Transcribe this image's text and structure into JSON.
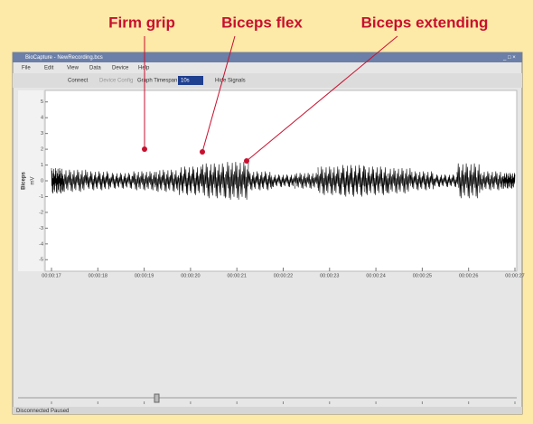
{
  "annotations": [
    "Firm grip",
    "Biceps flex",
    "Biceps extending"
  ],
  "window": {
    "title": "BioCapture - NewRecording.bcs",
    "menu": [
      "File",
      "Edit",
      "View",
      "Data",
      "Device",
      "Help"
    ],
    "toolbar": {
      "connect": "Connect",
      "device_config": "Device Config",
      "timespan_label": "Graph Timespan",
      "timespan_value": "10s",
      "hide_signals": "Hide Signals"
    },
    "status": "Disconnected  Paused"
  },
  "chart_data": {
    "type": "line",
    "y_label": "Biceps",
    "y_unit": "mV",
    "color": "#000000",
    "ylim": [
      -5.5,
      5.5
    ],
    "yticks": [
      5,
      4,
      3,
      2,
      1,
      0,
      -1,
      -2,
      -3,
      -4,
      -5
    ],
    "xlim": [
      17,
      27
    ],
    "xticks": [
      {
        "value": 17,
        "label": "00:00:17"
      },
      {
        "value": 18,
        "label": "00:00:18"
      },
      {
        "value": 19,
        "label": "00:00:19"
      },
      {
        "value": 20,
        "label": "00:00:20"
      },
      {
        "value": 21,
        "label": "00:00:21"
      },
      {
        "value": 22,
        "label": "00:00:22"
      },
      {
        "value": 23,
        "label": "00:00:23"
      },
      {
        "value": 24,
        "label": "00:00:24"
      },
      {
        "value": 25,
        "label": "00:00:25"
      },
      {
        "value": 26,
        "label": "00:00:26"
      },
      {
        "value": 27,
        "label": "00:00:27"
      }
    ],
    "x": [
      17,
      17.5,
      18,
      18.5,
      19,
      19.5,
      20,
      20.5,
      21,
      21.5,
      22,
      22.5,
      23,
      23.5,
      24,
      24.5,
      25,
      25.5,
      26,
      26.5,
      27
    ],
    "values": [
      0.8,
      0.7,
      0.6,
      0.5,
      0.6,
      0.7,
      0.9,
      1.1,
      1.2,
      0.6,
      0.4,
      0.5,
      0.9,
      1.0,
      0.9,
      0.8,
      0.6,
      0.4,
      1.1,
      0.6,
      0.5
    ]
  }
}
